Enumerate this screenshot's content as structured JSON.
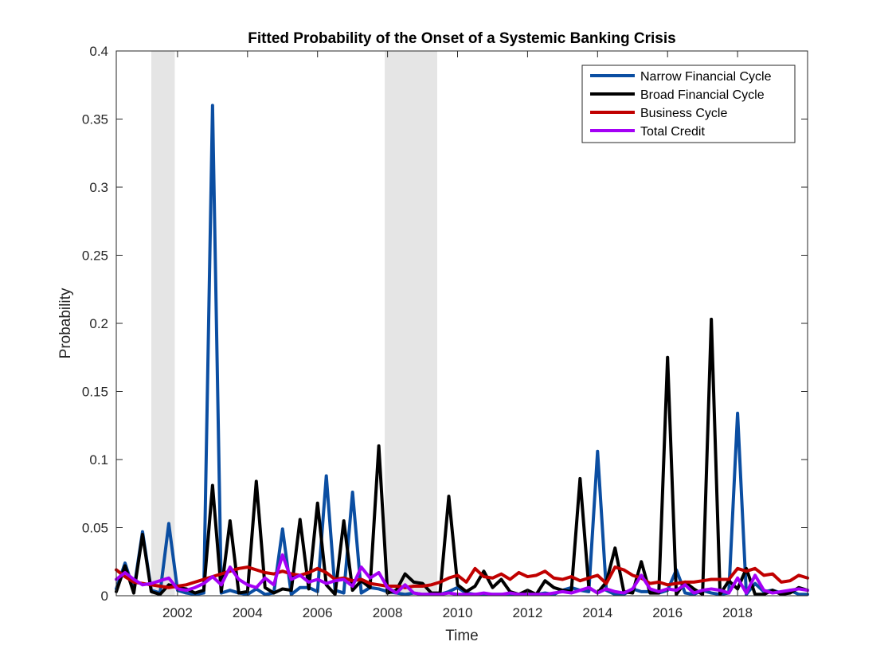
{
  "chart_data": {
    "type": "line",
    "title": "Fitted Probability of the Onset of a Systemic Banking Crisis",
    "xlabel": "Time",
    "ylabel": "Probability",
    "xlim": [
      2000.25,
      2020.0
    ],
    "ylim": [
      0,
      0.4
    ],
    "x_ticks": [
      2002,
      2004,
      2006,
      2008,
      2010,
      2012,
      2014,
      2016,
      2018
    ],
    "x_tick_labels": [
      "2002",
      "2004",
      "2006",
      "2008",
      "2010",
      "2012",
      "2014",
      "2016",
      "2018"
    ],
    "y_ticks": [
      0,
      0.05,
      0.1,
      0.15,
      0.2,
      0.25,
      0.3,
      0.35,
      0.4
    ],
    "y_tick_labels": [
      "0",
      "0.05",
      "0.1",
      "0.15",
      "0.2",
      "0.25",
      "0.3",
      "0.35",
      "0.4"
    ],
    "grid": false,
    "legend_position": "top-right",
    "shaded_periods": [
      {
        "start": 2001.25,
        "end": 2001.92
      },
      {
        "start": 2007.92,
        "end": 2009.42
      }
    ],
    "x": [
      2000.25,
      2000.5,
      2000.75,
      2001.0,
      2001.25,
      2001.5,
      2001.75,
      2002.0,
      2002.25,
      2002.5,
      2002.75,
      2003.0,
      2003.25,
      2003.5,
      2003.75,
      2004.0,
      2004.25,
      2004.5,
      2004.75,
      2005.0,
      2005.25,
      2005.5,
      2005.75,
      2006.0,
      2006.25,
      2006.5,
      2006.75,
      2007.0,
      2007.25,
      2007.5,
      2007.75,
      2008.0,
      2008.25,
      2008.5,
      2008.75,
      2009.0,
      2009.25,
      2009.5,
      2009.75,
      2010.0,
      2010.25,
      2010.5,
      2010.75,
      2011.0,
      2011.25,
      2011.5,
      2011.75,
      2012.0,
      2012.25,
      2012.5,
      2012.75,
      2013.0,
      2013.25,
      2013.5,
      2013.75,
      2014.0,
      2014.25,
      2014.5,
      2014.75,
      2015.0,
      2015.25,
      2015.5,
      2015.75,
      2016.0,
      2016.25,
      2016.5,
      2016.75,
      2017.0,
      2017.25,
      2017.5,
      2017.75,
      2018.0,
      2018.25,
      2018.5,
      2018.75,
      2019.0,
      2019.25,
      2019.5,
      2019.75,
      2020.0
    ],
    "series": [
      {
        "name": "Narrow Financial Cycle",
        "color": "#0b4ea2",
        "values": [
          0.005,
          0.024,
          0.004,
          0.047,
          0.004,
          0.002,
          0.053,
          0.004,
          0.002,
          0.001,
          0.002,
          0.36,
          0.002,
          0.004,
          0.002,
          0.001,
          0.005,
          0.001,
          0.002,
          0.049,
          0.001,
          0.006,
          0.006,
          0.003,
          0.088,
          0.004,
          0.002,
          0.076,
          0.002,
          0.006,
          0.005,
          0.003,
          0.002,
          0.001,
          0.002,
          0.001,
          0.001,
          0.001,
          0.003,
          0.006,
          0.002,
          0.001,
          0.001,
          0.001,
          0.001,
          0.001,
          0.001,
          0.001,
          0.001,
          0.002,
          0.001,
          0.004,
          0.006,
          0.004,
          0.003,
          0.106,
          0.004,
          0.001,
          0.001,
          0.005,
          0.003,
          0.003,
          0.002,
          0.004,
          0.019,
          0.002,
          0.001,
          0.004,
          0.002,
          0.001,
          0.002,
          0.134,
          0.001,
          0.009,
          0.003,
          0.004,
          0.002,
          0.004,
          0.001,
          0.001
        ]
      },
      {
        "name": "Broad Financial Cycle",
        "color": "#000000",
        "values": [
          0.003,
          0.022,
          0.002,
          0.045,
          0.003,
          0.001,
          0.008,
          0.006,
          0.005,
          0.002,
          0.004,
          0.081,
          0.003,
          0.055,
          0.002,
          0.003,
          0.084,
          0.006,
          0.002,
          0.005,
          0.004,
          0.056,
          0.005,
          0.068,
          0.008,
          0.001,
          0.055,
          0.004,
          0.011,
          0.006,
          0.11,
          0.002,
          0.004,
          0.016,
          0.01,
          0.009,
          0.002,
          0.002,
          0.073,
          0.008,
          0.003,
          0.007,
          0.018,
          0.006,
          0.012,
          0.003,
          0.001,
          0.004,
          0.001,
          0.011,
          0.006,
          0.004,
          0.003,
          0.086,
          0.006,
          0.002,
          0.01,
          0.035,
          0.003,
          0.002,
          0.025,
          0.002,
          0.002,
          0.175,
          0.001,
          0.01,
          0.005,
          0.001,
          0.203,
          0.001,
          0.011,
          0.005,
          0.02,
          0.001,
          0.001,
          0.004,
          0.001,
          0.002,
          0.006,
          0.004
        ]
      },
      {
        "name": "Business Cycle",
        "color": "#c00000",
        "values": [
          0.019,
          0.014,
          0.01,
          0.009,
          0.008,
          0.007,
          0.006,
          0.007,
          0.008,
          0.01,
          0.012,
          0.014,
          0.016,
          0.018,
          0.02,
          0.021,
          0.019,
          0.017,
          0.016,
          0.018,
          0.016,
          0.015,
          0.017,
          0.02,
          0.017,
          0.012,
          0.013,
          0.011,
          0.012,
          0.009,
          0.008,
          0.007,
          0.007,
          0.006,
          0.007,
          0.007,
          0.008,
          0.01,
          0.013,
          0.015,
          0.01,
          0.02,
          0.014,
          0.013,
          0.016,
          0.012,
          0.017,
          0.014,
          0.015,
          0.018,
          0.013,
          0.012,
          0.014,
          0.011,
          0.013,
          0.015,
          0.009,
          0.021,
          0.019,
          0.015,
          0.013,
          0.009,
          0.01,
          0.008,
          0.009,
          0.01,
          0.01,
          0.011,
          0.012,
          0.012,
          0.012,
          0.02,
          0.018,
          0.02,
          0.015,
          0.016,
          0.01,
          0.011,
          0.015,
          0.013
        ]
      },
      {
        "name": "Total Credit",
        "color": "#a400f5",
        "values": [
          0.012,
          0.017,
          0.012,
          0.008,
          0.009,
          0.011,
          0.013,
          0.005,
          0.004,
          0.006,
          0.009,
          0.014,
          0.008,
          0.021,
          0.012,
          0.008,
          0.006,
          0.013,
          0.008,
          0.03,
          0.012,
          0.015,
          0.01,
          0.012,
          0.009,
          0.011,
          0.012,
          0.007,
          0.021,
          0.013,
          0.017,
          0.006,
          0.002,
          0.008,
          0.002,
          0.001,
          0.001,
          0.001,
          0.002,
          0.001,
          0.001,
          0.001,
          0.002,
          0.001,
          0.001,
          0.002,
          0.001,
          0.001,
          0.001,
          0.001,
          0.002,
          0.003,
          0.002,
          0.004,
          0.006,
          0.002,
          0.005,
          0.003,
          0.002,
          0.005,
          0.015,
          0.005,
          0.003,
          0.005,
          0.004,
          0.008,
          0.002,
          0.004,
          0.005,
          0.004,
          0.002,
          0.013,
          0.002,
          0.015,
          0.004,
          0.002,
          0.003,
          0.004,
          0.005,
          0.004
        ]
      }
    ]
  }
}
